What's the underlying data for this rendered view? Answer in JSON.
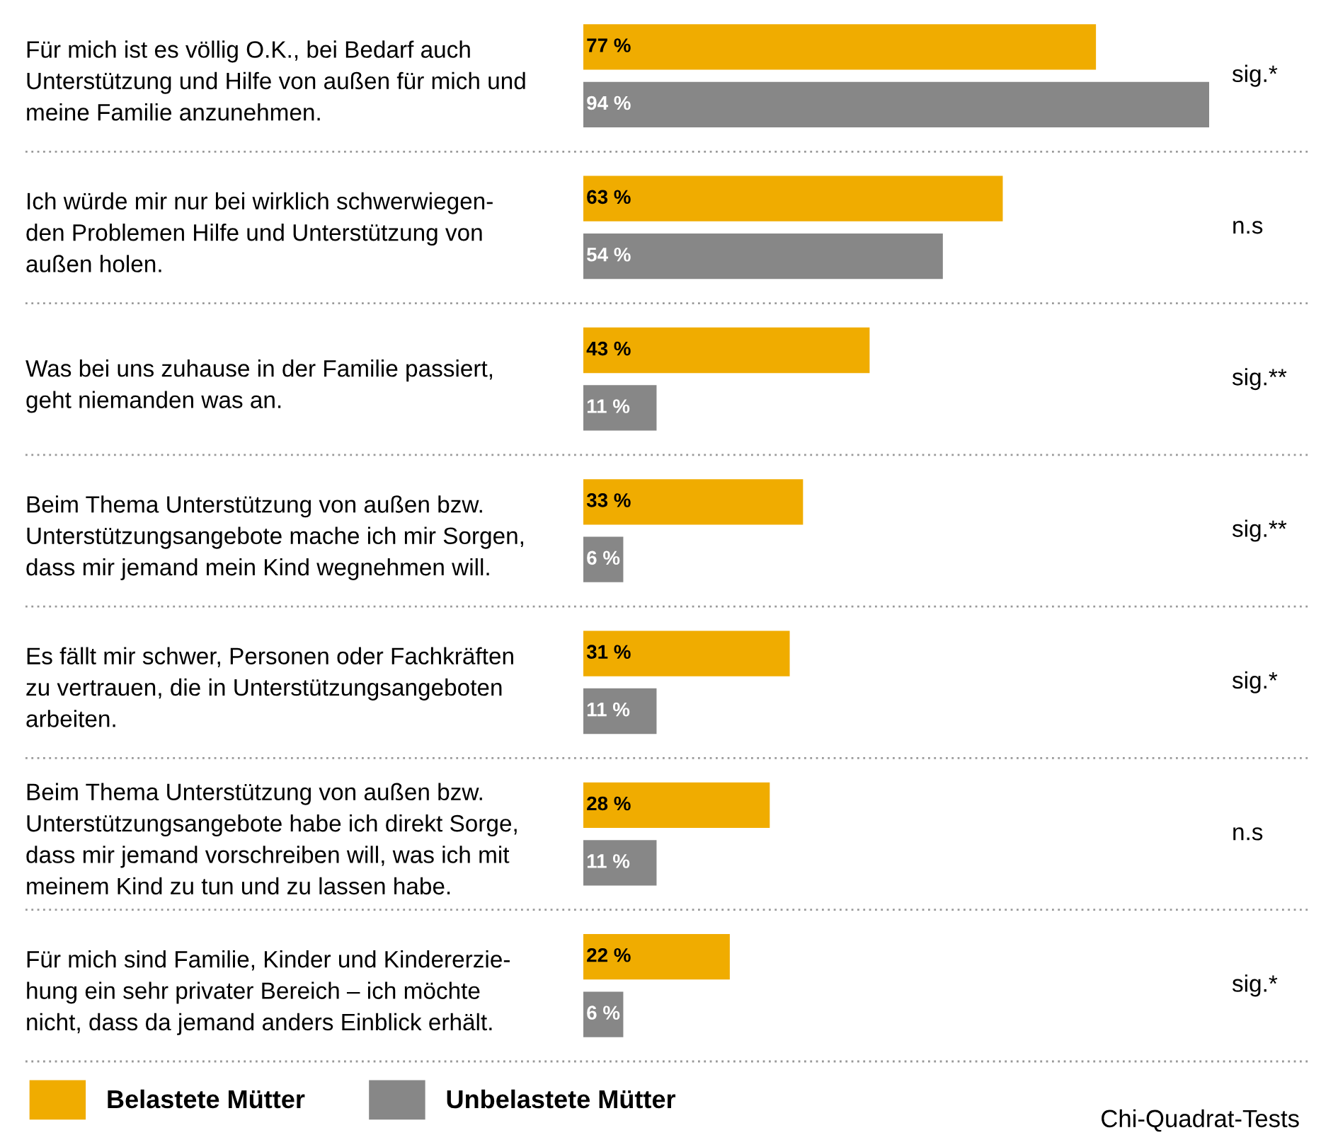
{
  "chart_data": {
    "type": "bar",
    "orientation": "horizontal",
    "categories": [
      "Für mich ist es völlig O.K., bei Bedarf auch\nUnterstützung und Hilfe von außen für mich und\nmeine Familie anzunehmen.",
      "Ich würde mir nur bei wirklich schwerwiegen-\nden Problemen Hilfe und Unterstützung von\naußen holen.",
      "Was bei uns zuhause in der Familie passiert,\ngeht niemanden was an.",
      "Beim Thema Unterstützung von außen bzw.\nUnterstützungsangebote mache ich mir Sorgen,\ndass mir jemand mein Kind wegnehmen will.",
      "Es fällt mir schwer, Personen oder Fachkräften\nzu vertrauen, die in Unterstützungsangeboten\narbeiten.",
      "Beim Thema Unterstützung von außen bzw.\nUnterstützungsangebote habe ich direkt Sorge,\ndass mir jemand vorschreiben will, was ich mit\nmeinem Kind zu tun und zu lassen habe.",
      "Für mich sind Familie, Kinder und Kindererzie-\nhung ein sehr privater Bereich – ich möchte\nnicht, dass da jemand anders Einblick erhält."
    ],
    "series": [
      {
        "name": "Belastete Mütter",
        "color": "#f0ac00",
        "values": [
          77,
          63,
          43,
          33,
          31,
          28,
          22
        ],
        "value_labels": [
          "77 %",
          "63 %",
          "43 %",
          "33 %",
          "31 %",
          "28 %",
          "22 %"
        ]
      },
      {
        "name": "Unbelastete Mütter",
        "color": "#878787",
        "values": [
          94,
          54,
          11,
          6,
          11,
          11,
          6
        ],
        "value_labels": [
          "94 %",
          "54 %",
          "11 %",
          "6 %",
          "11 %",
          "11 %",
          "6 %"
        ]
      }
    ],
    "annotations": [
      "sig.*",
      "n.s",
      "sig.**",
      "sig.**",
      "sig.*",
      "n.s",
      "sig.*",
      "Chi-Quadrat-Tests"
    ],
    "tick_labels": "y",
    "grid": false,
    "legend": "bottom left"
  }
}
